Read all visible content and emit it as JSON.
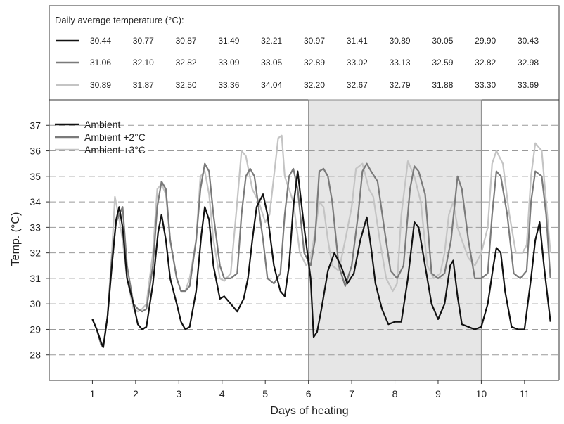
{
  "chart_data": {
    "type": "line",
    "table": {
      "title": "Daily average temperature (°C):",
      "rows": [
        {
          "series": "Ambient",
          "values": [
            "30.44",
            "30.77",
            "30.87",
            "31.49",
            "32.21",
            "30.97",
            "31.41",
            "30.89",
            "30.05",
            "29.90",
            "30.43"
          ]
        },
        {
          "series": "Ambient +2°C",
          "values": [
            "31.06",
            "32.10",
            "32.82",
            "33.09",
            "33.05",
            "32.89",
            "33.02",
            "33.13",
            "32.59",
            "32.82",
            "32.98"
          ]
        },
        {
          "series": "Ambient +3°C",
          "values": [
            "30.89",
            "31.87",
            "32.50",
            "33.36",
            "34.04",
            "32.20",
            "32.67",
            "32.79",
            "31.88",
            "33.30",
            "33.69"
          ]
        }
      ]
    },
    "xlabel": "Days of heating",
    "ylabel": "Temp. (°C)",
    "xlim": [
      0,
      11.8
    ],
    "ylim": [
      27,
      38
    ],
    "xticks": [
      "1",
      "2",
      "3",
      "4",
      "5",
      "6",
      "7",
      "8",
      "9",
      "10",
      "11"
    ],
    "yticks": [
      "28",
      "29",
      "30",
      "31",
      "32",
      "33",
      "34",
      "35",
      "36",
      "37"
    ],
    "shaded_region": [
      6,
      10
    ],
    "grid": "horizontal dashed",
    "legend_position": "top-left",
    "series": [
      {
        "name": "Ambient",
        "color": "#111111",
        "x": [
          1.0,
          1.1,
          1.2,
          1.25,
          1.35,
          1.45,
          1.55,
          1.62,
          1.7,
          1.8,
          1.95,
          2.05,
          2.15,
          2.25,
          2.4,
          2.52,
          2.6,
          2.7,
          2.8,
          2.95,
          3.05,
          3.15,
          3.25,
          3.4,
          3.52,
          3.6,
          3.7,
          3.8,
          3.95,
          4.05,
          4.2,
          4.35,
          4.5,
          4.6,
          4.7,
          4.8,
          4.95,
          5.05,
          5.2,
          5.35,
          5.45,
          5.55,
          5.65,
          5.75,
          5.9,
          6.05,
          6.12,
          6.2,
          6.3,
          6.45,
          6.6,
          6.75,
          6.9,
          7.05,
          7.2,
          7.35,
          7.45,
          7.55,
          7.7,
          7.85,
          8.0,
          8.15,
          8.3,
          8.45,
          8.55,
          8.7,
          8.85,
          9.0,
          9.15,
          9.28,
          9.35,
          9.45,
          9.55,
          9.7,
          9.85,
          10.0,
          10.15,
          10.28,
          10.35,
          10.45,
          10.55,
          10.7,
          10.85,
          11.0,
          11.15,
          11.25,
          11.35,
          11.45,
          11.6
        ],
        "y": [
          29.4,
          29.0,
          28.5,
          28.3,
          29.5,
          31.5,
          33.3,
          33.8,
          33.0,
          31.0,
          30.0,
          29.2,
          29.0,
          29.1,
          30.8,
          32.8,
          33.5,
          32.5,
          31.0,
          30.0,
          29.3,
          29.0,
          29.1,
          30.5,
          32.7,
          33.8,
          33.3,
          31.5,
          30.2,
          30.3,
          30.0,
          29.7,
          30.2,
          31.0,
          32.5,
          33.8,
          34.3,
          33.5,
          31.5,
          30.5,
          30.3,
          31.5,
          33.8,
          35.2,
          33.0,
          31.0,
          28.7,
          28.9,
          29.8,
          31.3,
          32.0,
          31.5,
          30.8,
          31.2,
          32.5,
          33.4,
          32.2,
          30.8,
          29.8,
          29.2,
          29.3,
          29.3,
          31.0,
          33.2,
          33.0,
          31.5,
          30.0,
          29.4,
          30.0,
          31.5,
          31.7,
          30.3,
          29.2,
          29.1,
          29.0,
          29.1,
          30.0,
          31.5,
          32.2,
          32.0,
          30.5,
          29.1,
          29.0,
          29.0,
          31.0,
          32.5,
          33.2,
          31.5,
          29.3
        ]
      },
      {
        "name": "Ambient +2°C",
        "color": "#7a7a7a",
        "x": [
          1.0,
          1.1,
          1.2,
          1.25,
          1.35,
          1.45,
          1.55,
          1.62,
          1.7,
          1.8,
          1.95,
          2.05,
          2.15,
          2.25,
          2.4,
          2.5,
          2.6,
          2.7,
          2.8,
          2.95,
          3.05,
          3.15,
          3.25,
          3.4,
          3.5,
          3.6,
          3.7,
          3.8,
          3.95,
          4.05,
          4.2,
          4.35,
          4.45,
          4.55,
          4.65,
          4.75,
          4.95,
          5.05,
          5.2,
          5.35,
          5.45,
          5.55,
          5.65,
          5.75,
          5.9,
          6.05,
          6.15,
          6.25,
          6.35,
          6.45,
          6.55,
          6.7,
          6.85,
          7.0,
          7.15,
          7.25,
          7.35,
          7.45,
          7.6,
          7.75,
          7.9,
          8.05,
          8.2,
          8.35,
          8.45,
          8.55,
          8.7,
          8.85,
          9.0,
          9.15,
          9.3,
          9.45,
          9.55,
          9.7,
          9.85,
          10.0,
          10.15,
          10.25,
          10.35,
          10.45,
          10.6,
          10.75,
          10.9,
          11.05,
          11.15,
          11.25,
          11.4,
          11.5,
          11.6
        ],
        "y": [
          29.4,
          29.0,
          28.4,
          28.3,
          29.5,
          31.8,
          33.2,
          33.5,
          33.8,
          31.5,
          30.0,
          29.8,
          29.7,
          29.8,
          31.5,
          33.8,
          34.8,
          34.5,
          32.5,
          31.0,
          30.5,
          30.5,
          30.7,
          32.5,
          34.5,
          35.5,
          35.2,
          33.5,
          31.5,
          31.0,
          31.0,
          31.2,
          33.5,
          35.0,
          35.3,
          35.0,
          32.5,
          31.0,
          30.8,
          31.2,
          33.5,
          35.0,
          35.3,
          34.5,
          32.0,
          31.5,
          32.5,
          35.2,
          35.3,
          35.0,
          34.0,
          31.5,
          30.7,
          31.5,
          33.5,
          35.2,
          35.5,
          35.2,
          34.8,
          33.0,
          31.3,
          31.0,
          31.5,
          34.5,
          35.4,
          35.2,
          34.3,
          31.2,
          31.0,
          31.2,
          32.5,
          35.0,
          34.5,
          32.5,
          31.0,
          31.0,
          31.2,
          33.5,
          35.2,
          35.0,
          33.5,
          31.2,
          31.0,
          31.3,
          34.0,
          35.2,
          35.0,
          33.5,
          31.0
        ]
      },
      {
        "name": "Ambient +3°C",
        "color": "#c4c4c4",
        "x": [
          1.0,
          1.1,
          1.2,
          1.25,
          1.35,
          1.45,
          1.52,
          1.6,
          1.7,
          1.8,
          1.95,
          2.05,
          2.15,
          2.25,
          2.4,
          2.5,
          2.6,
          2.7,
          2.8,
          2.95,
          3.05,
          3.15,
          3.25,
          3.4,
          3.5,
          3.6,
          3.7,
          3.8,
          3.95,
          4.05,
          4.2,
          4.35,
          4.45,
          4.55,
          4.7,
          4.85,
          5.0,
          5.1,
          5.2,
          5.3,
          5.38,
          5.45,
          5.55,
          5.65,
          5.8,
          5.95,
          6.05,
          6.15,
          6.25,
          6.35,
          6.45,
          6.55,
          6.7,
          6.85,
          7.0,
          7.1,
          7.25,
          7.4,
          7.5,
          7.65,
          7.8,
          7.95,
          8.05,
          8.15,
          8.3,
          8.45,
          8.6,
          8.75,
          8.9,
          9.05,
          9.15,
          9.25,
          9.35,
          9.45,
          9.55,
          9.7,
          9.85,
          10.0,
          10.15,
          10.25,
          10.35,
          10.5,
          10.65,
          10.8,
          10.95,
          11.05,
          11.15,
          11.25,
          11.4,
          11.5,
          11.6
        ],
        "y": [
          29.4,
          29.0,
          28.5,
          28.3,
          29.5,
          32.0,
          34.2,
          33.5,
          32.5,
          31.0,
          29.8,
          29.7,
          29.8,
          30.0,
          32.0,
          34.5,
          34.7,
          34.3,
          32.5,
          31.0,
          30.5,
          30.5,
          31.0,
          32.5,
          35.0,
          35.2,
          34.3,
          32.5,
          31.0,
          30.9,
          31.2,
          34.0,
          36.0,
          35.8,
          34.5,
          34.0,
          33.2,
          33.5,
          35.0,
          36.5,
          36.6,
          35.0,
          34.5,
          34.0,
          32.0,
          31.5,
          31.8,
          32.8,
          34.0,
          33.8,
          32.5,
          31.5,
          31.3,
          32.5,
          33.8,
          35.3,
          35.5,
          34.5,
          34.2,
          32.5,
          31.0,
          30.5,
          30.8,
          33.5,
          35.6,
          35.0,
          34.0,
          31.5,
          31.0,
          31.2,
          32.0,
          33.5,
          34.0,
          33.0,
          32.5,
          31.8,
          31.5,
          32.0,
          33.0,
          35.5,
          36.0,
          35.5,
          33.5,
          32.0,
          32.0,
          32.3,
          35.0,
          36.3,
          36.0,
          34.0,
          32.0
        ]
      }
    ]
  }
}
